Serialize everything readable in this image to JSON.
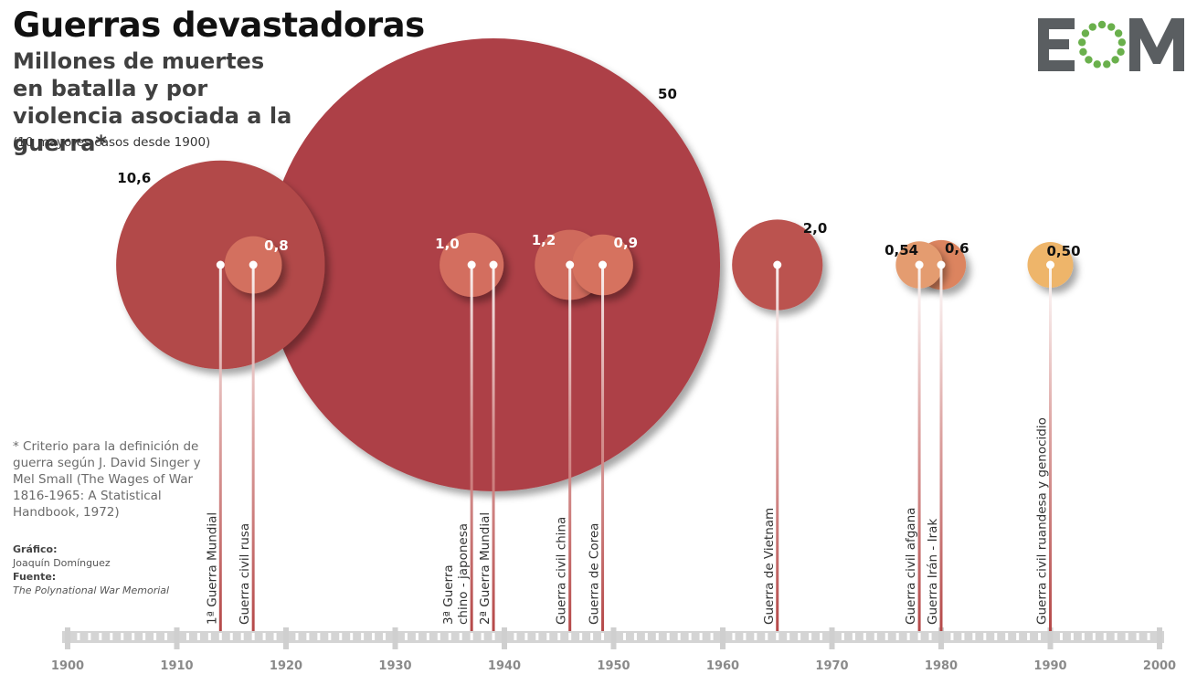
{
  "header": {
    "title": "Guerras devastadoras",
    "subtitle": "Millones de muertes en batalla y por violencia asociada a la guerra*",
    "note": "(10 mayores casos desde 1900)"
  },
  "logo": {
    "text": "EOM",
    "icon": "eom-logo-ring-icon",
    "ring_color": "#6ab04c",
    "text_color": "#5a5e61"
  },
  "footnote": "* Criterio para la definición de guerra según J. David Singer y Mel Small (The Wages of War 1816-1965: A Statistical Handbook, 1972)",
  "credits": {
    "graphic_label": "Gráfico:",
    "graphic_author": "Joaquín Domínguez",
    "source_label": "Fuente:",
    "source_value": "The Polynational War Memorial"
  },
  "chart_data": {
    "type": "bubble-timeline",
    "x_axis": {
      "min": 1900,
      "max": 2000,
      "ticks": [
        1900,
        1910,
        1920,
        1930,
        1940,
        1950,
        1960,
        1970,
        1980,
        1990,
        2000
      ],
      "minor_step": 1
    },
    "value_unit": "millones de muertes",
    "colors": {
      "large": "#ad4245",
      "medium": "#d06a5e",
      "small": "#e39b6e",
      "smallest": "#edb56b",
      "stem": "#b54848",
      "axis": "#cccccc"
    },
    "wars": [
      {
        "name": "1ª Guerra Mundial",
        "year": 1914,
        "deaths": 10.6,
        "label": "10,6",
        "color": "#b24a48"
      },
      {
        "name": "Guerra civil rusa",
        "year": 1917,
        "deaths": 0.8,
        "label": "0,8",
        "color": "#d3705f"
      },
      {
        "name": "3ª Guerra chino - japonesa",
        "year": 1937,
        "deaths": 1.0,
        "label": "1,0",
        "color": "#d36e5f"
      },
      {
        "name": "2ª Guerra Mundial",
        "year": 1939,
        "deaths": 50,
        "label": "50",
        "color": "#ad4147"
      },
      {
        "name": "Guerra civil china",
        "year": 1946,
        "deaths": 1.2,
        "label": "1,2",
        "color": "#cf6a5b"
      },
      {
        "name": "Guerra de Corea",
        "year": 1949,
        "deaths": 0.9,
        "label": "0,9",
        "color": "#d6725f"
      },
      {
        "name": "Guerra de Vietnam",
        "year": 1965,
        "deaths": 2.0,
        "label": "2,0",
        "color": "#bb5250"
      },
      {
        "name": "Guerra civil afgana",
        "year": 1978,
        "deaths": 0.54,
        "label": "0,54",
        "color": "#e49c70"
      },
      {
        "name": "Guerra Irán - Irak",
        "year": 1980,
        "deaths": 0.6,
        "label": "0,6",
        "color": "#dc845f"
      },
      {
        "name": "Guerra civil ruandesa y genocidio",
        "year": 1990,
        "deaths": 0.5,
        "label": "0,50",
        "color": "#eeb56a"
      }
    ]
  }
}
